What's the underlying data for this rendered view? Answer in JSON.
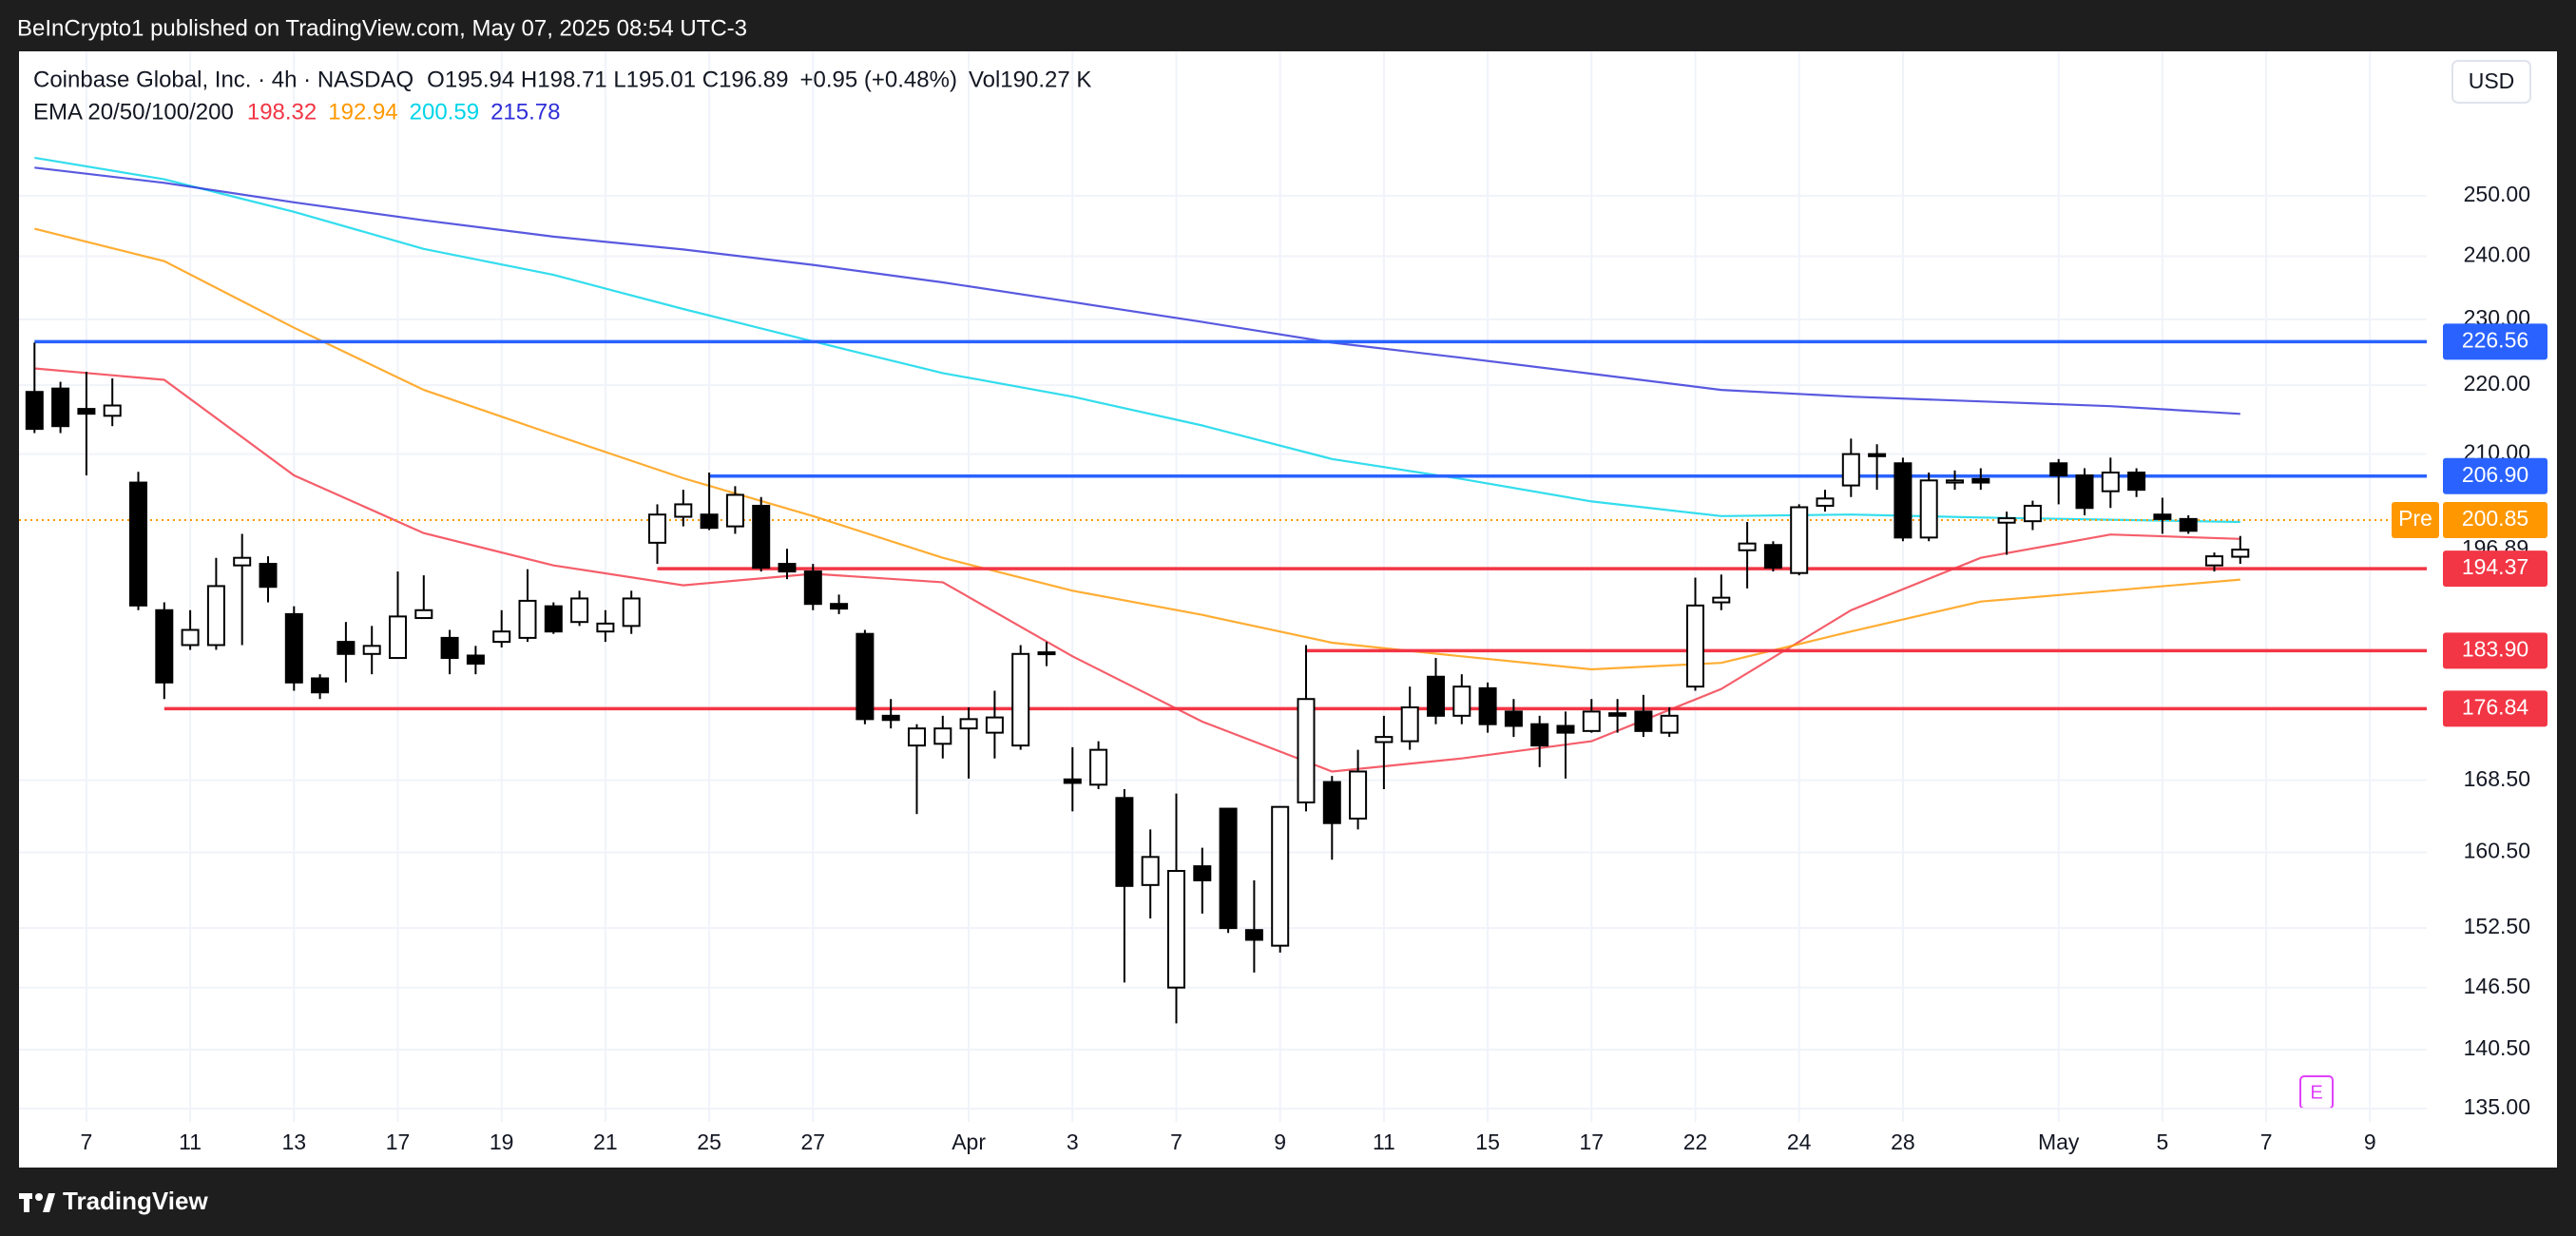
{
  "header": {
    "published": "BeInCrypto1 published on TradingView.com, May 07, 2025 08:54 UTC-3"
  },
  "footer": {
    "brand": "TradingView"
  },
  "badge": "E",
  "chart_data": {
    "type": "candlestick",
    "symbol": "Coinbase Global, Inc. · 4h · NASDAQ",
    "ohlc_text": "O195.94 H198.71 L195.01 C196.89",
    "change": "+0.95 (+0.48%)",
    "volume": "Vol190.27 K",
    "indicator": "EMA 20/50/100/200",
    "currency": "USD",
    "log_scale": true,
    "grid": true,
    "up_color": "#ffffff",
    "down_color": "#000000",
    "wick_color": "#000000",
    "categories": [
      null,
      null,
      "7",
      null,
      null,
      null,
      "11",
      null,
      null,
      null,
      "13",
      null,
      null,
      null,
      "17",
      null,
      null,
      null,
      "19",
      null,
      null,
      null,
      "21",
      null,
      null,
      null,
      "25",
      null,
      null,
      null,
      "27",
      null,
      null,
      null,
      null,
      null,
      "Apr",
      null,
      null,
      null,
      "3",
      null,
      null,
      null,
      "7",
      null,
      null,
      null,
      "9",
      null,
      null,
      null,
      "11",
      null,
      null,
      null,
      "15",
      null,
      null,
      null,
      "17",
      null,
      null,
      null,
      "22",
      null,
      null,
      null,
      "24",
      null,
      null,
      null,
      "28",
      null,
      null,
      null,
      null,
      null,
      "May",
      null,
      null,
      null,
      "5",
      null,
      null,
      null,
      "7",
      null,
      null,
      null,
      "9"
    ],
    "open": [
      219,
      219.5,
      216.5,
      215.5,
      206,
      189,
      184.6,
      184.6,
      194.8,
      195,
      188.5,
      180.5,
      185,
      183.5,
      183,
      188,
      185.5,
      183.3,
      185,
      185.5,
      189.5,
      187.5,
      186.3,
      187,
      197.8,
      201.3,
      201.6,
      200,
      202.8,
      195,
      194,
      189.8,
      186,
      176,
      172.5,
      172.7,
      174.5,
      174,
      172.5,
      183.5,
      168.6,
      168,
      166.5,
      157,
      146.5,
      159,
      165.3,
      152.3,
      150.7,
      166,
      168.3,
      164.2,
      172.9,
      173,
      180.7,
      176,
      179.3,
      176.5,
      175,
      174.8,
      174.2,
      176.3,
      176.5,
      174,
      179.5,
      190,
      196.8,
      197.5,
      193.8,
      202.8,
      205.6,
      210,
      208.7,
      198.5,
      206,
      206.5,
      200.5,
      200.7,
      208.7,
      207,
      204.8,
      207.4,
      201.6,
      201,
      194.8,
      195.94,
      null,
      null,
      null,
      null,
      null
    ],
    "high": [
      226.4,
      220.5,
      222,
      221,
      207.5,
      190,
      189,
      195.8,
      199,
      196,
      189.5,
      181,
      187.5,
      187,
      194,
      193.5,
      186.5,
      184.5,
      189,
      194.3,
      190,
      191.5,
      189,
      191.5,
      203,
      205,
      207.4,
      205.5,
      204,
      197,
      195,
      191,
      186.5,
      178,
      175,
      176,
      177,
      179,
      184.6,
      185,
      172.3,
      173,
      167.5,
      163,
      167,
      161,
      165.3,
      157.5,
      165.5,
      184.6,
      169,
      172,
      176,
      179.5,
      183,
      181,
      180,
      178,
      176,
      176.5,
      178,
      178,
      178.5,
      177,
      193.2,
      193.6,
      200.6,
      198,
      203,
      205,
      212.2,
      211.4,
      209.5,
      207.4,
      207.7,
      208,
      202,
      203.5,
      209.3,
      208,
      209.5,
      208,
      203.9,
      201.5,
      196.5,
      198.71,
      null,
      null,
      null,
      null,
      null
    ],
    "low": [
      213,
      213,
      207,
      214,
      189,
      178,
      184,
      184,
      184.6,
      190,
      179,
      178,
      180,
      181,
      183,
      188,
      181,
      181,
      184.3,
      185,
      186,
      187,
      185,
      186,
      195,
      200,
      199.5,
      199,
      194,
      193,
      189,
      188.5,
      175,
      174.5,
      164.7,
      171,
      168.7,
      171,
      172,
      182,
      165,
      167.5,
      147,
      153.5,
      143,
      154,
      152,
      148,
      150,
      165,
      159.7,
      163,
      167.5,
      172,
      175,
      175,
      174,
      173.5,
      170,
      168.7,
      174,
      174,
      173.5,
      173.5,
      179,
      189,
      191.8,
      194,
      193.5,
      202,
      204,
      205,
      198,
      198,
      205,
      205,
      196.2,
      199.5,
      203,
      201.5,
      202.5,
      204,
      199,
      199,
      194,
      195.01,
      null,
      null,
      null,
      null,
      null
    ],
    "close": [
      213.6,
      214,
      215.8,
      217,
      189.6,
      180,
      186.5,
      192.1,
      195.8,
      192,
      180,
      178.8,
      183.5,
      184.5,
      188.2,
      189,
      183,
      182.3,
      186.3,
      190.2,
      186.3,
      190.5,
      187.3,
      190.5,
      201.6,
      203,
      199.8,
      204.3,
      194.5,
      194,
      189.8,
      189.2,
      175.6,
      175.5,
      174.5,
      174.5,
      175.6,
      175.8,
      183.5,
      183.7,
      168.2,
      172,
      156.9,
      160,
      158.5,
      157.5,
      152.5,
      151.3,
      165.5,
      178,
      163.7,
      169.5,
      173.5,
      177,
      176,
      179.5,
      175,
      174.8,
      172.5,
      174,
      176.5,
      176,
      174.2,
      176,
      189.6,
      190.6,
      197.7,
      194.5,
      202.6,
      203.8,
      210,
      209.7,
      198.5,
      206.3,
      206.3,
      206,
      201.1,
      202.8,
      207,
      202.5,
      207.4,
      205,
      201,
      199.4,
      196,
      196.89,
      null,
      null,
      null,
      null,
      null
    ],
    "series": [
      {
        "color": "#f23645",
        "x": [
          0,
          5,
          10,
          15,
          20,
          25,
          30,
          35,
          40,
          45,
          50,
          55,
          60,
          65,
          70,
          75,
          80,
          85
        ],
        "values": [
          222.5,
          220.8,
          207.0,
          199.1,
          194.8,
          192.2,
          193.7,
          192.6,
          183.2,
          175.3,
          169.5,
          171.0,
          173.0,
          179.2,
          189.0,
          195.8,
          198.9,
          198.32
        ]
      },
      {
        "color": "#ff9800",
        "x": [
          0,
          5,
          10,
          15,
          20,
          25,
          30,
          35,
          40,
          45,
          50,
          55,
          60,
          65,
          70,
          75,
          80,
          85
        ],
        "values": [
          244.5,
          239.2,
          228.7,
          219.3,
          212.8,
          206.6,
          201.4,
          195.8,
          191.5,
          188.4,
          184.9,
          183.2,
          181.6,
          182.4,
          186.3,
          190.1,
          191.5,
          192.94
        ]
      },
      {
        "color": "#00d5e8",
        "x": [
          0,
          5,
          10,
          15,
          20,
          25,
          30,
          35,
          40,
          45,
          50,
          55,
          60,
          65,
          70,
          75,
          80,
          85
        ],
        "values": [
          256.5,
          252.8,
          247.3,
          241.2,
          237.0,
          231.6,
          226.6,
          221.8,
          218.3,
          214.1,
          209.3,
          206.5,
          203.4,
          201.4,
          201.6,
          201.2,
          200.9,
          200.59
        ]
      },
      {
        "color": "#2f2fd8",
        "x": [
          0,
          5,
          10,
          15,
          20,
          25,
          30,
          35,
          40,
          45,
          50,
          55,
          60,
          65,
          70,
          75,
          80,
          85
        ],
        "values": [
          254.8,
          252.2,
          248.9,
          245.9,
          243.2,
          241.1,
          238.6,
          235.8,
          232.7,
          229.6,
          226.4,
          224.1,
          221.7,
          219.3,
          218.3,
          217.6,
          216.9,
          215.78
        ]
      }
    ],
    "levels": [
      {
        "value": 226.56,
        "color": "#2962ff",
        "x": 0
      },
      {
        "value": 206.9,
        "label": "206.90",
        "color": "#2962ff",
        "x": 26
      },
      {
        "value": 194.37,
        "color": "#f23645",
        "x": 24
      },
      {
        "value": 183.9,
        "label": "183.90",
        "color": "#f23645",
        "x": 49
      },
      {
        "value": 176.84,
        "color": "#f23645",
        "x": 5
      }
    ],
    "price_line": {
      "value": 200.85,
      "tag": "Pre",
      "color": "#ff9800"
    },
    "ylim": [
      133.8,
      275.6
    ],
    "yticks": [
      {
        "value": 135,
        "label": "135.00"
      },
      {
        "value": 140.5,
        "label": "140.50"
      },
      {
        "value": 146.5,
        "label": "146.50"
      },
      {
        "value": 152.5,
        "label": "152.50"
      },
      {
        "value": 160.5,
        "label": "160.50"
      },
      {
        "value": 168.5,
        "label": "168.50"
      },
      {
        "value": 210,
        "label": "210.00"
      },
      {
        "value": 220,
        "label": "220.00"
      },
      {
        "value": 230,
        "label": "230.00"
      },
      {
        "value": 240,
        "label": "240.00"
      },
      {
        "value": 250,
        "label": "250.00"
      }
    ]
  }
}
